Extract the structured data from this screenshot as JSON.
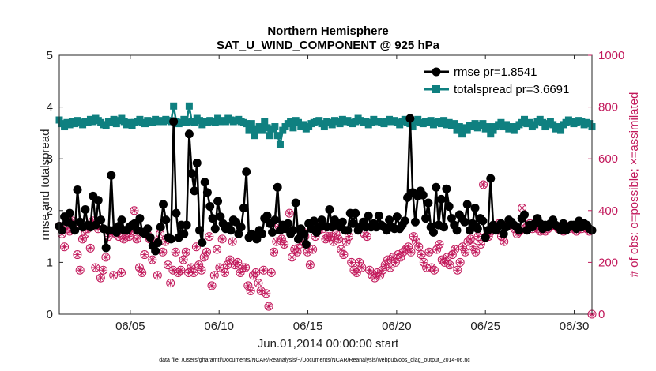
{
  "chart_data": {
    "type": "line",
    "title": "Northern Hemisphere",
    "subtitle": "SAT_U_WIND_COMPONENT @ 925 hPa",
    "xlabel": "Jun.01,2014 00:00:00 start",
    "ylabel": "rmse and totalspread",
    "ylabel_right": "# of obs: o=possible; ×=assimilated",
    "xlim": [
      1,
      31
    ],
    "ylim": [
      0,
      5
    ],
    "ylim_right": [
      0,
      1000
    ],
    "x_ticks": [
      5,
      10,
      15,
      20,
      25,
      30
    ],
    "x_tick_labels": [
      "06/05",
      "06/10",
      "06/15",
      "06/20",
      "06/25",
      "06/30"
    ],
    "y_ticks": [
      "0",
      "1",
      "2",
      "3",
      "4",
      "5"
    ],
    "y_ticks_right": [
      "0",
      "200",
      "400",
      "600",
      "800",
      "1000"
    ],
    "legend_location": "top-right",
    "colors": {
      "rmse": "#000000",
      "totalspread": "#0f8080",
      "obs": "#c2185b"
    },
    "series": [
      {
        "name": "rmse pr=1.8541",
        "axis": "left",
        "values": [
          1.7,
          1.62,
          1.88,
          1.78,
          1.95,
          1.72,
          1.62,
          2.4,
          1.78,
          1.68,
          2.02,
          1.72,
          1.68,
          2.28,
          1.72,
          2.2,
          1.82,
          1.65,
          1.28,
          1.62,
          2.68,
          1.62,
          1.58,
          1.7,
          1.82,
          1.62,
          1.62,
          1.68,
          1.72,
          1.75,
          1.62,
          1.85,
          1.58,
          1.55,
          1.65,
          1.48,
          1.32,
          1.22,
          1.38,
          1.68,
          2.12,
          1.82,
          1.48,
          1.45,
          3.72,
          1.95,
          1.48,
          1.72,
          1.55,
          1.72,
          3.48,
          2.72,
          2.38,
          2.92,
          1.62,
          1.38,
          2.55,
          2.35,
          2.08,
          1.85,
          1.65,
          2.18,
          1.88,
          1.75,
          1.65,
          1.7,
          1.62,
          1.82,
          1.78,
          1.55,
          1.68,
          2.05,
          2.75,
          1.48,
          1.55,
          1.52,
          1.45,
          1.62,
          1.55,
          1.85,
          1.9,
          1.75,
          1.58,
          1.82,
          2.45,
          1.62,
          1.72,
          1.65,
          1.75,
          1.55,
          1.62,
          2.15,
          1.45,
          1.65,
          1.55,
          1.35,
          1.75,
          1.65,
          1.8,
          1.58,
          1.68,
          1.82,
          1.7,
          1.68,
          2.02,
          1.68,
          1.82,
          1.72,
          1.68,
          1.78,
          1.62,
          1.62,
          1.95,
          1.75,
          1.95,
          1.62,
          1.68,
          1.78,
          1.68,
          1.9,
          1.68,
          1.75,
          1.68,
          1.9,
          1.72,
          1.68,
          1.62,
          1.82,
          1.68,
          1.65,
          1.88,
          1.65,
          1.72,
          1.8,
          2.25,
          3.78,
          2.35,
          1.78,
          2.28,
          2.38,
          2.3,
          1.85,
          2.15,
          1.68,
          1.58,
          2.45,
          1.72,
          2.22,
          1.68,
          2.42,
          2.08,
          1.85,
          1.72,
          1.62,
          1.92,
          1.85,
          1.78,
          2.12,
          1.62,
          1.75,
          2.05,
          1.65,
          1.85,
          1.8,
          1.48,
          1.62,
          2.62,
          1.72,
          1.62,
          1.7,
          1.75,
          1.55,
          1.68,
          1.82,
          1.78,
          1.72,
          1.68,
          1.62,
          1.85,
          1.92,
          1.62,
          1.72,
          1.68,
          1.75,
          1.85,
          1.75,
          1.65,
          1.72,
          1.68,
          1.75,
          1.82,
          1.72,
          1.68,
          1.62,
          1.75,
          1.62,
          1.68,
          1.72,
          1.72,
          1.65,
          1.8,
          1.68,
          1.75,
          1.72,
          1.65,
          1.62
        ]
      },
      {
        "name": "totalspread pr=3.6691",
        "axis": "left",
        "values": [
          3.75,
          3.68,
          3.62,
          3.7,
          3.66,
          3.72,
          3.68,
          3.74,
          3.7,
          3.66,
          3.72,
          3.7,
          3.76,
          3.72,
          3.78,
          3.74,
          3.7,
          3.66,
          3.64,
          3.72,
          3.7,
          3.76,
          3.68,
          3.74,
          3.78,
          3.72,
          3.66,
          3.7,
          3.64,
          3.7,
          3.72,
          3.76,
          3.7,
          3.68,
          3.74,
          3.72,
          3.7,
          3.76,
          3.72,
          3.74,
          3.72,
          3.76,
          3.74,
          3.72,
          4.02,
          3.72,
          3.68,
          3.7,
          3.76,
          3.7,
          4.02,
          3.72,
          3.7,
          3.78,
          3.74,
          3.66,
          3.72,
          3.7,
          3.74,
          3.72,
          3.7,
          3.78,
          3.72,
          3.74,
          3.72,
          3.78,
          3.75,
          3.72,
          3.74,
          3.76,
          3.72,
          3.7,
          3.68,
          3.55,
          3.68,
          3.45,
          3.58,
          3.62,
          3.55,
          3.72,
          3.6,
          3.45,
          3.58,
          3.62,
          3.45,
          3.28,
          3.55,
          3.62,
          3.68,
          3.72,
          3.6,
          3.74,
          3.7,
          3.62,
          3.66,
          3.58,
          3.62,
          3.68,
          3.7,
          3.72,
          3.74,
          3.68,
          3.62,
          3.72,
          3.7,
          3.66,
          3.74,
          3.72,
          3.68,
          3.76,
          3.72,
          3.74,
          3.7,
          3.68,
          3.72,
          3.78,
          3.74,
          3.7,
          3.72,
          3.66,
          3.7,
          3.76,
          3.72,
          3.72,
          3.7,
          3.68,
          3.72,
          3.76,
          3.72,
          3.74,
          3.7,
          3.66,
          3.72,
          3.76,
          3.7,
          3.68,
          3.62,
          3.72,
          3.76,
          3.7,
          3.68,
          3.72,
          3.7,
          3.74,
          3.66,
          3.7,
          3.72,
          3.68,
          3.74,
          3.66,
          3.7,
          3.64,
          3.68,
          3.55,
          3.62,
          3.48,
          3.6,
          3.55,
          3.65,
          3.62,
          3.68,
          3.6,
          3.65,
          3.68,
          3.58,
          3.62,
          3.48,
          3.55,
          3.62,
          3.66,
          3.7,
          3.62,
          3.66,
          3.58,
          3.62,
          3.55,
          3.62,
          3.66,
          3.7,
          3.76,
          3.68,
          3.7,
          3.62,
          3.66,
          3.72,
          3.76,
          3.7,
          3.62,
          3.68,
          3.72,
          3.66,
          3.58,
          3.62,
          3.55,
          3.66,
          3.7,
          3.75,
          3.72,
          3.68,
          3.7,
          3.74,
          3.72,
          3.66,
          3.7,
          3.68,
          3.62
        ]
      },
      {
        "name": "# of obs possible",
        "axis": "right",
        "values": [
          340,
          310,
          260,
          330,
          320,
          360,
          345,
          230,
          170,
          290,
          310,
          330,
          255,
          360,
          180,
          330,
          140,
          170,
          220,
          300,
          320,
          150,
          310,
          300,
          160,
          290,
          310,
          300,
          320,
          400,
          290,
          180,
          160,
          230,
          310,
          290,
          210,
          280,
          150,
          310,
          240,
          280,
          190,
          120,
          170,
          240,
          160,
          170,
          210,
          240,
          160,
          180,
          160,
          260,
          190,
          170,
          220,
          240,
          300,
          110,
          150,
          250,
          180,
          290,
          160,
          190,
          210,
          280,
          190,
          200,
          160,
          180,
          180,
          110,
          90,
          150,
          160,
          120,
          90,
          170,
          80,
          30,
          160,
          240,
          280,
          340,
          290,
          270,
          330,
          390,
          220,
          250,
          240,
          270,
          320,
          300,
          240,
          190,
          250,
          300,
          320,
          340,
          330,
          290,
          300,
          300,
          280,
          310,
          290,
          250,
          230,
          280,
          300,
          200,
          170,
          160,
          200,
          180,
          310,
          300,
          170,
          150,
          140,
          160,
          150,
          170,
          190,
          210,
          180,
          220,
          200,
          230,
          220,
          240,
          250,
          260,
          240,
          300,
          280,
          260,
          230,
          200,
          180,
          240,
          180,
          170,
          250,
          270,
          210,
          200,
          220,
          190,
          230,
          250,
          170,
          200,
          260,
          240,
          280,
          290,
          260,
          240,
          300,
          270,
          500,
          300,
          300,
          320,
          340,
          330,
          350,
          300,
          280,
          340,
          360,
          340,
          330,
          310,
          320,
          410,
          330,
          340,
          350,
          330,
          340,
          330,
          320,
          340,
          320,
          330,
          340,
          350,
          340,
          330,
          340,
          320,
          340,
          330,
          340,
          330,
          320,
          340,
          330,
          340,
          330,
          320,
          0
        ]
      }
    ],
    "footnote": "data file: /Users/gharamti/Documents/NCAR/Reanalysis/~/Documents/NCAR/Reanalysis/webpub/obs_diag_output_2014-06.nc"
  }
}
